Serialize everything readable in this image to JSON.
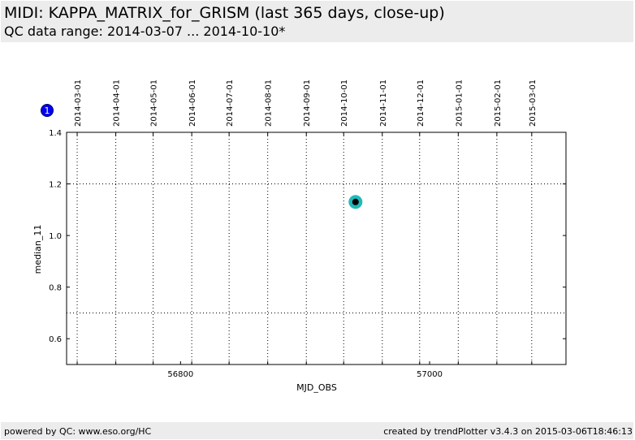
{
  "header": {
    "title": "MIDI: KAPPA_MATRIX_for_GRISM (last 365 days, close-up)",
    "subtitle": "QC data range: 2014-03-07 ... 2014-10-10*"
  },
  "footer": {
    "left": "powered by QC: www.eso.org/HC",
    "right": "created by trendPlotter v3.4.3 on 2015-03-06T18:46:13"
  },
  "legend_badge": "1",
  "colors": {
    "badge": "#0000ee",
    "point_outer": "#22b8b8",
    "point_inner": "#000000",
    "grid": "#000000",
    "header_bg": "#ececec"
  },
  "chart_data": {
    "type": "scatter",
    "xlabel": "MJD_OBS",
    "ylabel": "median_11",
    "xlim": [
      56708.5,
      57109.5
    ],
    "ylim": [
      0.5,
      1.4
    ],
    "x_ticks": [
      56800,
      57000
    ],
    "y_ticks": [
      0.6,
      0.8,
      1.0,
      1.2,
      1.4
    ],
    "y_tick_labels": [
      "0.6",
      "0.8",
      "1.0",
      "1.2",
      "1.4"
    ],
    "h_ref_lines": [
      0.7,
      1.2
    ],
    "date_ticks": [
      {
        "label": "2014-03-01",
        "mjd": 56717
      },
      {
        "label": "2014-04-01",
        "mjd": 56748
      },
      {
        "label": "2014-05-01",
        "mjd": 56778
      },
      {
        "label": "2014-06-01",
        "mjd": 56809
      },
      {
        "label": "2014-07-01",
        "mjd": 56839
      },
      {
        "label": "2014-08-01",
        "mjd": 56870
      },
      {
        "label": "2014-09-01",
        "mjd": 56901
      },
      {
        "label": "2014-10-01",
        "mjd": 56931
      },
      {
        "label": "2014-11-01",
        "mjd": 56962
      },
      {
        "label": "2014-12-01",
        "mjd": 56992
      },
      {
        "label": "2015-01-01",
        "mjd": 57023
      },
      {
        "label": "2015-02-01",
        "mjd": 57054
      },
      {
        "label": "2015-03-01",
        "mjd": 57082
      }
    ],
    "series": [
      {
        "points": [
          {
            "x": 56940.5,
            "y": 1.13
          }
        ]
      }
    ]
  }
}
